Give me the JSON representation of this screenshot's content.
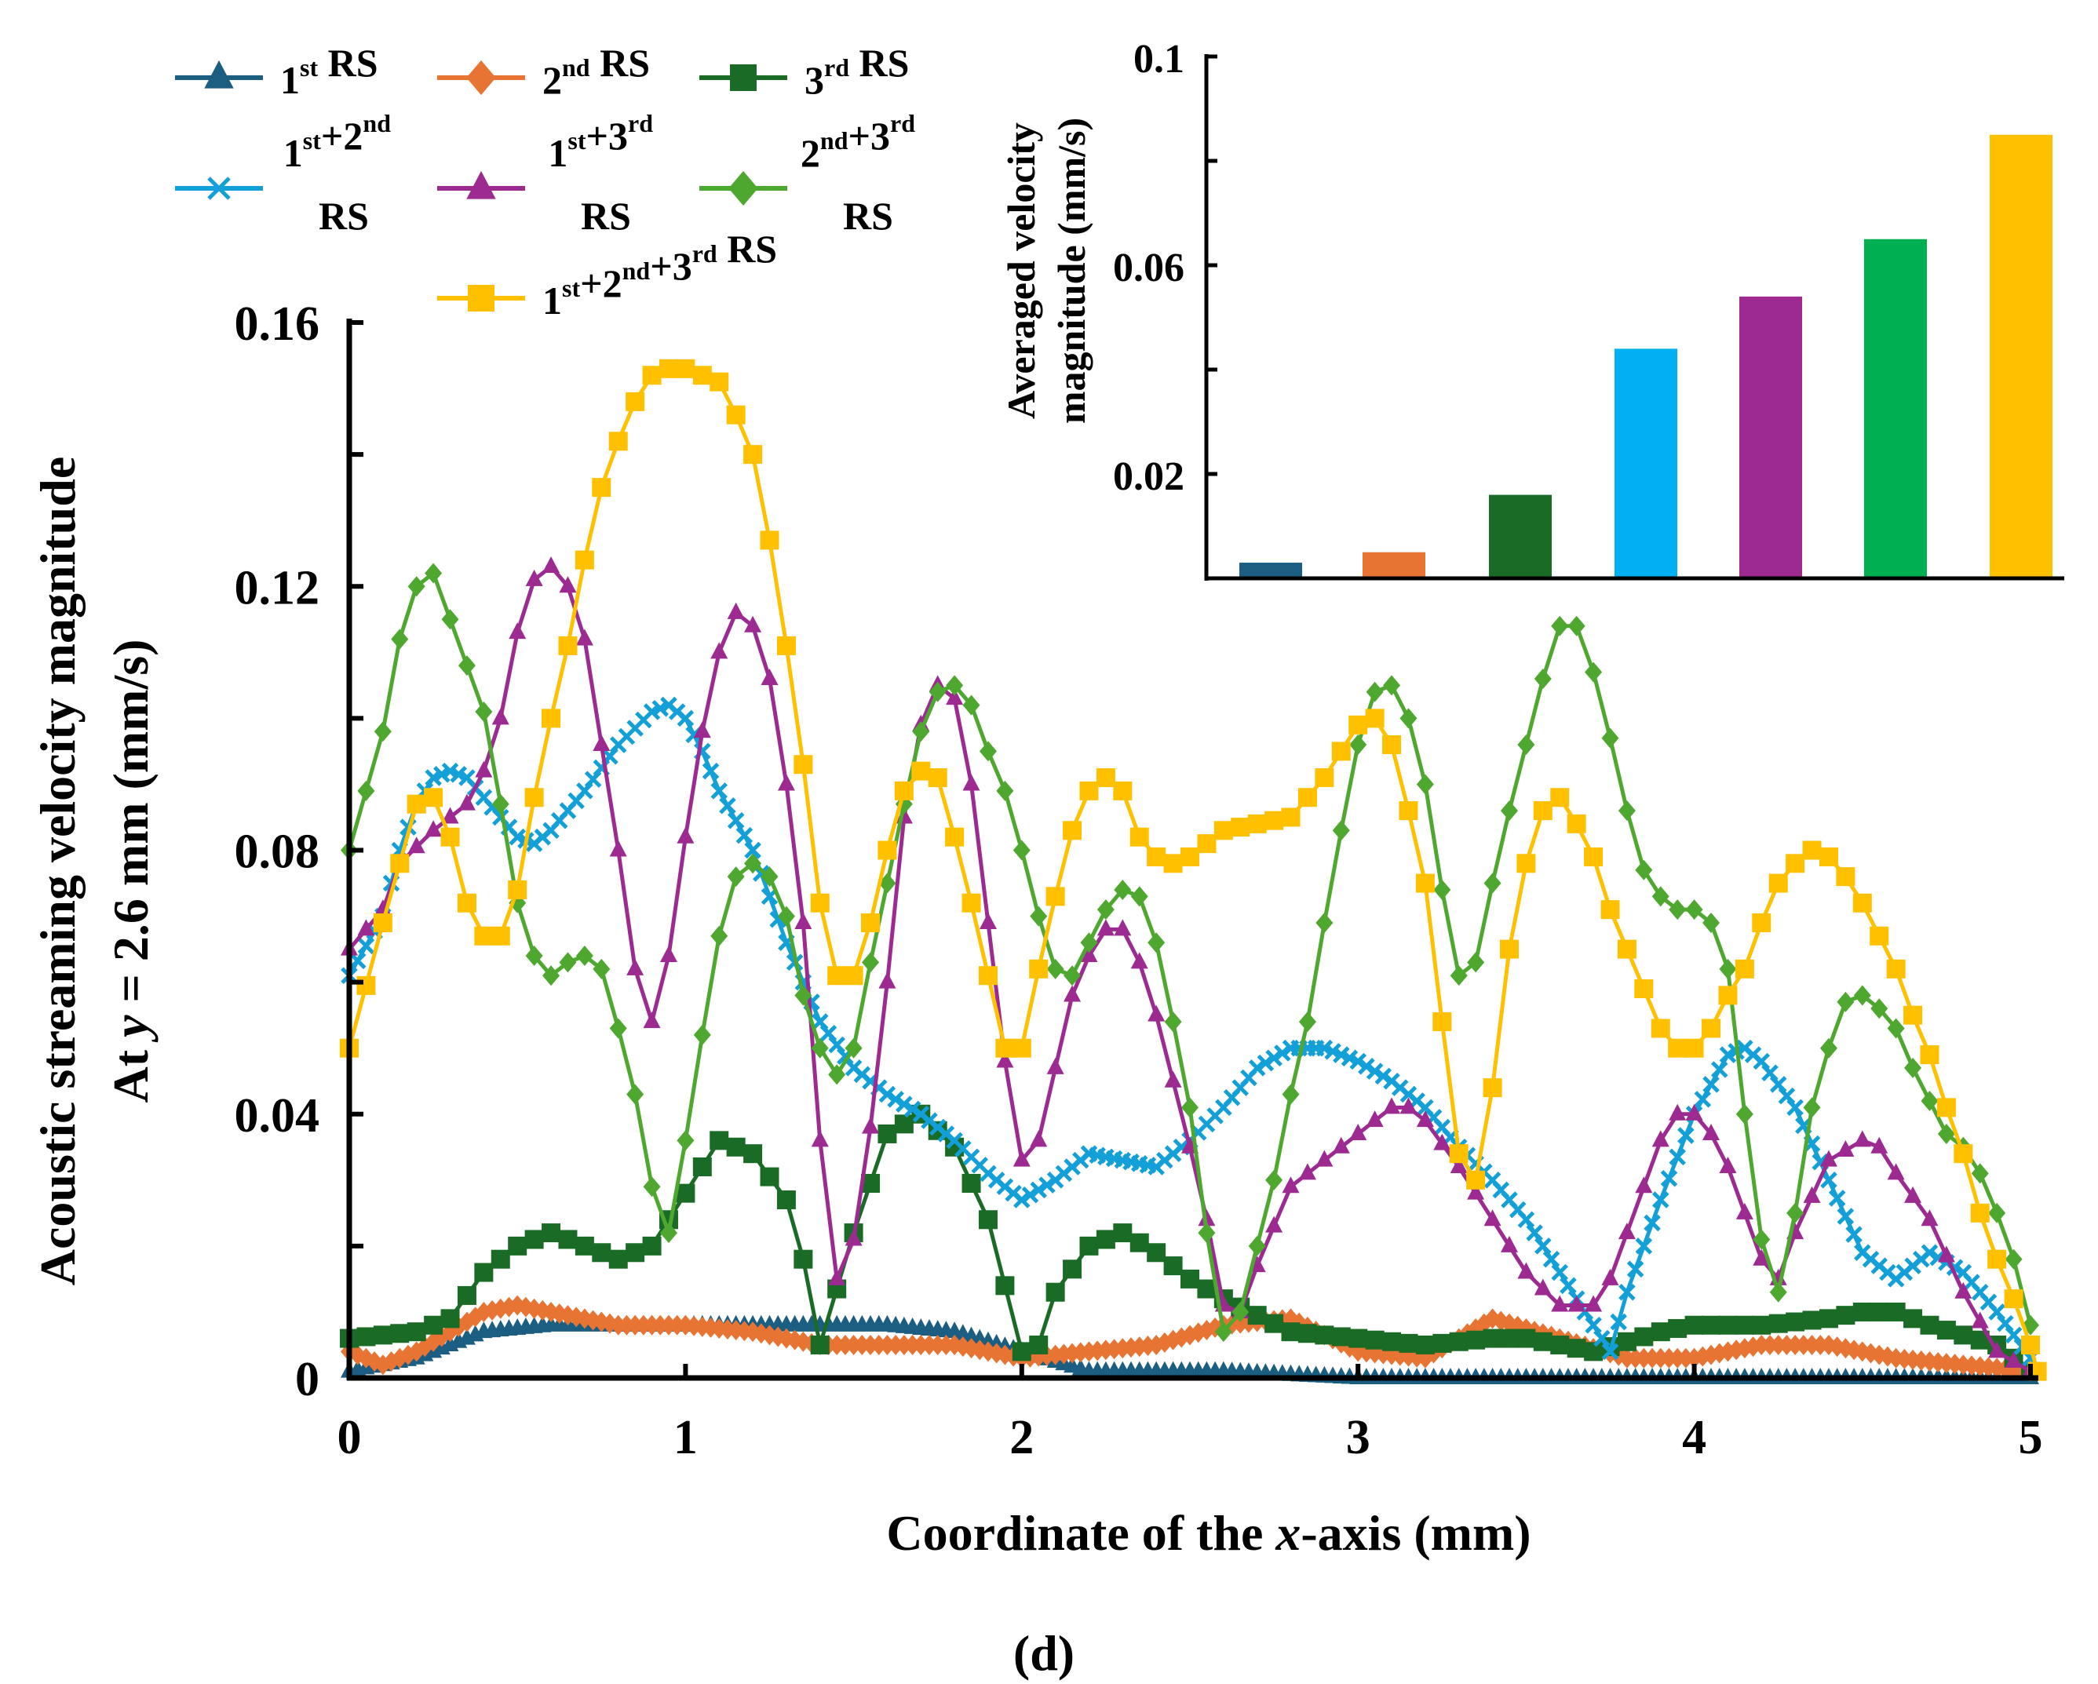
{
  "figure_label": "(d)",
  "chart_data": [
    {
      "type": "line",
      "title": "",
      "xlabel": "Coordinate of the x-axis  (mm)",
      "xlabel_parts": [
        "Coordinate of the ",
        "x",
        "-axis  (mm)"
      ],
      "ylabel_lines": [
        "Acoustic streaming velocity magnitude",
        "At y = 2.6 mm  (mm/s)"
      ],
      "xlim": [
        0,
        5
      ],
      "ylim": [
        0,
        0.16
      ],
      "xticks": [
        "0",
        "1",
        "2",
        "3",
        "4",
        "5"
      ],
      "yticks": [
        "0",
        "0.04",
        "0.08",
        "0.12",
        "0.16"
      ],
      "grid": false,
      "legend_placement": "top-left, above plot",
      "series": [
        {
          "name": "1st RS",
          "lines": [
            "1st RS"
          ],
          "color": "#1B5E82",
          "marker": "triangle",
          "step": 0.025,
          "x": [
            0,
            0.2,
            0.4,
            0.6,
            0.8,
            1.0,
            1.2,
            1.4,
            1.6,
            1.8,
            2.0,
            2.2,
            2.4,
            2.6,
            3.0,
            5.0
          ],
          "y": [
            0.001,
            0.003,
            0.007,
            0.008,
            0.008,
            0.008,
            0.008,
            0.008,
            0.008,
            0.007,
            0.004,
            0.001,
            0.001,
            0.001,
            0.0,
            0.0
          ]
        },
        {
          "name": "2nd RS",
          "lines": [
            "2nd RS"
          ],
          "color": "#E87433",
          "marker": "diamond",
          "step": 0.025,
          "x": [
            0,
            0.1,
            0.2,
            0.3,
            0.4,
            0.5,
            0.6,
            0.8,
            1.0,
            1.2,
            1.4,
            1.6,
            1.8,
            2.0,
            2.2,
            2.4,
            2.6,
            2.8,
            3.0,
            3.2,
            3.4,
            3.6,
            3.8,
            4.0,
            4.2,
            4.4,
            4.6,
            4.8,
            5.0
          ],
          "y": [
            0.004,
            0.002,
            0.004,
            0.007,
            0.01,
            0.011,
            0.01,
            0.008,
            0.008,
            0.007,
            0.005,
            0.005,
            0.005,
            0.003,
            0.004,
            0.005,
            0.008,
            0.009,
            0.004,
            0.003,
            0.009,
            0.006,
            0.003,
            0.003,
            0.005,
            0.005,
            0.003,
            0.002,
            0.001
          ]
        },
        {
          "name": "3rd RS",
          "lines": [
            "3rd RS"
          ],
          "color": "#1A6B26",
          "marker": "square",
          "step": 0.05,
          "x": [
            0,
            0.2,
            0.3,
            0.4,
            0.5,
            0.6,
            0.7,
            0.8,
            0.9,
            1.0,
            1.1,
            1.2,
            1.3,
            1.35,
            1.4,
            1.5,
            1.6,
            1.7,
            1.8,
            1.9,
            1.95,
            2.0,
            2.05,
            2.1,
            2.2,
            2.3,
            2.4,
            2.5,
            2.6,
            2.8,
            3.0,
            3.2,
            3.4,
            3.5,
            3.7,
            3.9,
            4.0,
            4.2,
            4.4,
            4.5,
            4.6,
            4.7,
            4.9,
            5.0
          ],
          "y": [
            0.006,
            0.007,
            0.009,
            0.016,
            0.02,
            0.022,
            0.02,
            0.018,
            0.02,
            0.028,
            0.036,
            0.034,
            0.027,
            0.018,
            0.005,
            0.022,
            0.037,
            0.04,
            0.035,
            0.024,
            0.014,
            0.004,
            0.005,
            0.013,
            0.02,
            0.022,
            0.019,
            0.015,
            0.012,
            0.007,
            0.006,
            0.005,
            0.006,
            0.006,
            0.004,
            0.007,
            0.008,
            0.008,
            0.009,
            0.01,
            0.01,
            0.008,
            0.005,
            0.001
          ]
        },
        {
          "name": "1st+2nd RS",
          "lines": [
            "1st+2nd",
            "RS"
          ],
          "color": "#139FD8",
          "marker": "cross",
          "step": 0.025,
          "x": [
            0,
            0.1,
            0.15,
            0.2,
            0.25,
            0.3,
            0.35,
            0.4,
            0.45,
            0.5,
            0.55,
            0.6,
            0.7,
            0.8,
            0.9,
            0.95,
            1.0,
            1.05,
            1.1,
            1.2,
            1.3,
            1.4,
            1.5,
            1.6,
            1.7,
            1.8,
            1.9,
            2.0,
            2.1,
            2.2,
            2.3,
            2.4,
            2.5,
            2.6,
            2.7,
            2.8,
            2.9,
            3.0,
            3.1,
            3.2,
            3.3,
            3.4,
            3.5,
            3.6,
            3.7,
            3.75,
            3.8,
            3.9,
            4.0,
            4.1,
            4.15,
            4.2,
            4.3,
            4.4,
            4.5,
            4.6,
            4.7,
            4.8,
            4.9,
            5.0
          ],
          "y": [
            0.061,
            0.07,
            0.08,
            0.087,
            0.091,
            0.092,
            0.091,
            0.088,
            0.085,
            0.082,
            0.081,
            0.083,
            0.089,
            0.096,
            0.101,
            0.102,
            0.1,
            0.095,
            0.089,
            0.08,
            0.066,
            0.054,
            0.047,
            0.043,
            0.04,
            0.036,
            0.031,
            0.027,
            0.03,
            0.034,
            0.033,
            0.032,
            0.036,
            0.041,
            0.047,
            0.05,
            0.05,
            0.048,
            0.045,
            0.041,
            0.035,
            0.03,
            0.024,
            0.016,
            0.008,
            0.004,
            0.013,
            0.027,
            0.04,
            0.049,
            0.05,
            0.048,
            0.041,
            0.03,
            0.019,
            0.015,
            0.019,
            0.016,
            0.01,
            0.003
          ]
        },
        {
          "name": "1st+3rd RS",
          "lines": [
            "1st+3rd",
            "RS"
          ],
          "color": "#9C2A91",
          "marker": "triangle",
          "step": 0.05,
          "x": [
            0,
            0.1,
            0.15,
            0.25,
            0.35,
            0.4,
            0.45,
            0.5,
            0.55,
            0.6,
            0.65,
            0.7,
            0.75,
            0.8,
            0.85,
            0.9,
            0.95,
            1.0,
            1.05,
            1.1,
            1.15,
            1.2,
            1.25,
            1.3,
            1.35,
            1.4,
            1.45,
            1.5,
            1.55,
            1.6,
            1.65,
            1.7,
            1.75,
            1.8,
            1.85,
            1.9,
            1.95,
            2.0,
            2.05,
            2.1,
            2.15,
            2.2,
            2.25,
            2.3,
            2.35,
            2.4,
            2.45,
            2.5,
            2.55,
            2.6,
            2.65,
            2.7,
            2.75,
            2.8,
            2.9,
            3.0,
            3.1,
            3.15,
            3.2,
            3.3,
            3.4,
            3.5,
            3.6,
            3.7,
            3.75,
            3.8,
            3.85,
            3.9,
            3.95,
            4.0,
            4.05,
            4.1,
            4.15,
            4.2,
            4.25,
            4.3,
            4.4,
            4.5,
            4.55,
            4.6,
            4.7,
            4.8,
            4.9,
            5.0
          ],
          "y": [
            0.065,
            0.071,
            0.078,
            0.083,
            0.087,
            0.092,
            0.1,
            0.113,
            0.121,
            0.123,
            0.12,
            0.112,
            0.096,
            0.08,
            0.062,
            0.054,
            0.064,
            0.082,
            0.098,
            0.11,
            0.116,
            0.114,
            0.106,
            0.09,
            0.069,
            0.036,
            0.015,
            0.021,
            0.038,
            0.06,
            0.085,
            0.099,
            0.105,
            0.103,
            0.09,
            0.069,
            0.048,
            0.033,
            0.036,
            0.047,
            0.058,
            0.064,
            0.068,
            0.068,
            0.063,
            0.055,
            0.045,
            0.035,
            0.024,
            0.011,
            0.01,
            0.017,
            0.023,
            0.029,
            0.033,
            0.037,
            0.041,
            0.041,
            0.039,
            0.032,
            0.024,
            0.016,
            0.011,
            0.011,
            0.015,
            0.022,
            0.029,
            0.036,
            0.04,
            0.04,
            0.037,
            0.032,
            0.025,
            0.018,
            0.015,
            0.022,
            0.033,
            0.036,
            0.035,
            0.031,
            0.024,
            0.013,
            0.004,
            0.001
          ]
        },
        {
          "name": "2nd+3rd RS",
          "lines": [
            "2nd+3rd",
            "RS"
          ],
          "color": "#4EA72E",
          "marker": "diamond",
          "step": 0.05,
          "x": [
            0,
            0.1,
            0.15,
            0.2,
            0.25,
            0.3,
            0.4,
            0.45,
            0.5,
            0.55,
            0.6,
            0.65,
            0.7,
            0.75,
            0.8,
            0.85,
            0.9,
            0.95,
            1.0,
            1.05,
            1.1,
            1.15,
            1.2,
            1.25,
            1.3,
            1.35,
            1.4,
            1.45,
            1.5,
            1.55,
            1.6,
            1.65,
            1.7,
            1.75,
            1.8,
            1.85,
            1.9,
            1.95,
            2.0,
            2.05,
            2.1,
            2.15,
            2.2,
            2.25,
            2.3,
            2.35,
            2.4,
            2.45,
            2.5,
            2.55,
            2.6,
            2.65,
            2.7,
            2.75,
            2.8,
            2.85,
            2.9,
            2.95,
            3.0,
            3.05,
            3.1,
            3.15,
            3.2,
            3.25,
            3.3,
            3.35,
            3.4,
            3.45,
            3.5,
            3.55,
            3.6,
            3.65,
            3.7,
            3.75,
            3.8,
            3.85,
            3.9,
            3.95,
            4.0,
            4.05,
            4.1,
            4.15,
            4.2,
            4.25,
            4.3,
            4.35,
            4.4,
            4.45,
            4.5,
            4.55,
            4.6,
            4.65,
            4.7,
            4.75,
            4.8,
            4.85,
            4.9,
            4.95,
            5.0
          ],
          "y": [
            0.08,
            0.098,
            0.112,
            0.12,
            0.122,
            0.115,
            0.101,
            0.087,
            0.072,
            0.064,
            0.061,
            0.063,
            0.064,
            0.062,
            0.053,
            0.043,
            0.029,
            0.022,
            0.036,
            0.052,
            0.067,
            0.076,
            0.078,
            0.076,
            0.07,
            0.058,
            0.05,
            0.046,
            0.05,
            0.063,
            0.075,
            0.087,
            0.098,
            0.104,
            0.105,
            0.102,
            0.095,
            0.089,
            0.08,
            0.07,
            0.062,
            0.061,
            0.066,
            0.071,
            0.074,
            0.073,
            0.066,
            0.054,
            0.041,
            0.022,
            0.007,
            0.01,
            0.02,
            0.03,
            0.043,
            0.054,
            0.069,
            0.083,
            0.096,
            0.104,
            0.105,
            0.1,
            0.09,
            0.074,
            0.061,
            0.063,
            0.075,
            0.086,
            0.096,
            0.106,
            0.114,
            0.114,
            0.107,
            0.097,
            0.086,
            0.077,
            0.073,
            0.071,
            0.071,
            0.069,
            0.062,
            0.04,
            0.021,
            0.013,
            0.025,
            0.041,
            0.05,
            0.057,
            0.058,
            0.056,
            0.053,
            0.047,
            0.042,
            0.037,
            0.035,
            0.031,
            0.025,
            0.018,
            0.008
          ]
        },
        {
          "name": "1st+2nd+3rd RS",
          "lines": [
            "1st+2nd+3rd RS"
          ],
          "color": "#FFC000",
          "marker": "square",
          "step": 0.05,
          "x": [
            0,
            0.1,
            0.2,
            0.25,
            0.3,
            0.35,
            0.4,
            0.45,
            0.5,
            0.55,
            0.6,
            0.65,
            0.7,
            0.75,
            0.8,
            0.85,
            0.9,
            0.95,
            1.0,
            1.05,
            1.1,
            1.15,
            1.2,
            1.25,
            1.3,
            1.35,
            1.4,
            1.45,
            1.5,
            1.55,
            1.6,
            1.65,
            1.7,
            1.75,
            1.8,
            1.85,
            1.9,
            1.95,
            2.0,
            2.05,
            2.1,
            2.15,
            2.2,
            2.25,
            2.3,
            2.35,
            2.4,
            2.45,
            2.5,
            2.55,
            2.6,
            2.7,
            2.8,
            2.85,
            2.9,
            2.95,
            3.0,
            3.05,
            3.1,
            3.15,
            3.2,
            3.25,
            3.3,
            3.35,
            3.4,
            3.45,
            3.5,
            3.55,
            3.6,
            3.65,
            3.7,
            3.75,
            3.8,
            3.85,
            3.9,
            3.95,
            4.0,
            4.05,
            4.1,
            4.15,
            4.2,
            4.25,
            4.3,
            4.35,
            4.4,
            4.45,
            4.5,
            4.55,
            4.6,
            4.65,
            4.7,
            4.75,
            4.8,
            4.85,
            4.9,
            4.95,
            5.0,
            5.02
          ],
          "y": [
            0.05,
            0.069,
            0.087,
            0.088,
            0.082,
            0.072,
            0.067,
            0.067,
            0.074,
            0.088,
            0.1,
            0.111,
            0.124,
            0.135,
            0.142,
            0.148,
            0.152,
            0.153,
            0.153,
            0.152,
            0.151,
            0.146,
            0.14,
            0.127,
            0.111,
            0.093,
            0.072,
            0.061,
            0.061,
            0.069,
            0.08,
            0.089,
            0.092,
            0.091,
            0.082,
            0.072,
            0.061,
            0.05,
            0.05,
            0.062,
            0.073,
            0.083,
            0.089,
            0.091,
            0.089,
            0.082,
            0.079,
            0.078,
            0.079,
            0.081,
            0.083,
            0.084,
            0.085,
            0.088,
            0.091,
            0.095,
            0.099,
            0.1,
            0.096,
            0.086,
            0.075,
            0.054,
            0.034,
            0.03,
            0.044,
            0.065,
            0.078,
            0.086,
            0.088,
            0.084,
            0.079,
            0.071,
            0.065,
            0.059,
            0.053,
            0.05,
            0.05,
            0.053,
            0.058,
            0.062,
            0.069,
            0.075,
            0.078,
            0.08,
            0.079,
            0.076,
            0.072,
            0.067,
            0.062,
            0.055,
            0.049,
            0.041,
            0.034,
            0.025,
            0.018,
            0.012,
            0.005,
            0.001
          ]
        }
      ]
    },
    {
      "type": "bar",
      "title": "",
      "xlabel": "",
      "ylabel_lines": [
        "Averaged velocity",
        "magnitude (mm/s)"
      ],
      "ylim": [
        0,
        0.1
      ],
      "yticks": [
        "0.02",
        "0.06",
        "0.1"
      ],
      "ytick_values": [
        0.02,
        0.06,
        0.1
      ],
      "categories": [
        "1st RS",
        "2nd RS",
        "3rd RS",
        "1st+2nd RS",
        "1st+3rd RS",
        "2nd+3rd RS",
        "1st+2nd+3rd RS"
      ],
      "values": [
        0.003,
        0.005,
        0.016,
        0.044,
        0.054,
        0.065,
        0.085
      ],
      "colors": [
        "#1B5E82",
        "#E87433",
        "#1A6B26",
        "#00B0F0",
        "#9C2A91",
        "#00B050",
        "#FFC000"
      ]
    }
  ]
}
